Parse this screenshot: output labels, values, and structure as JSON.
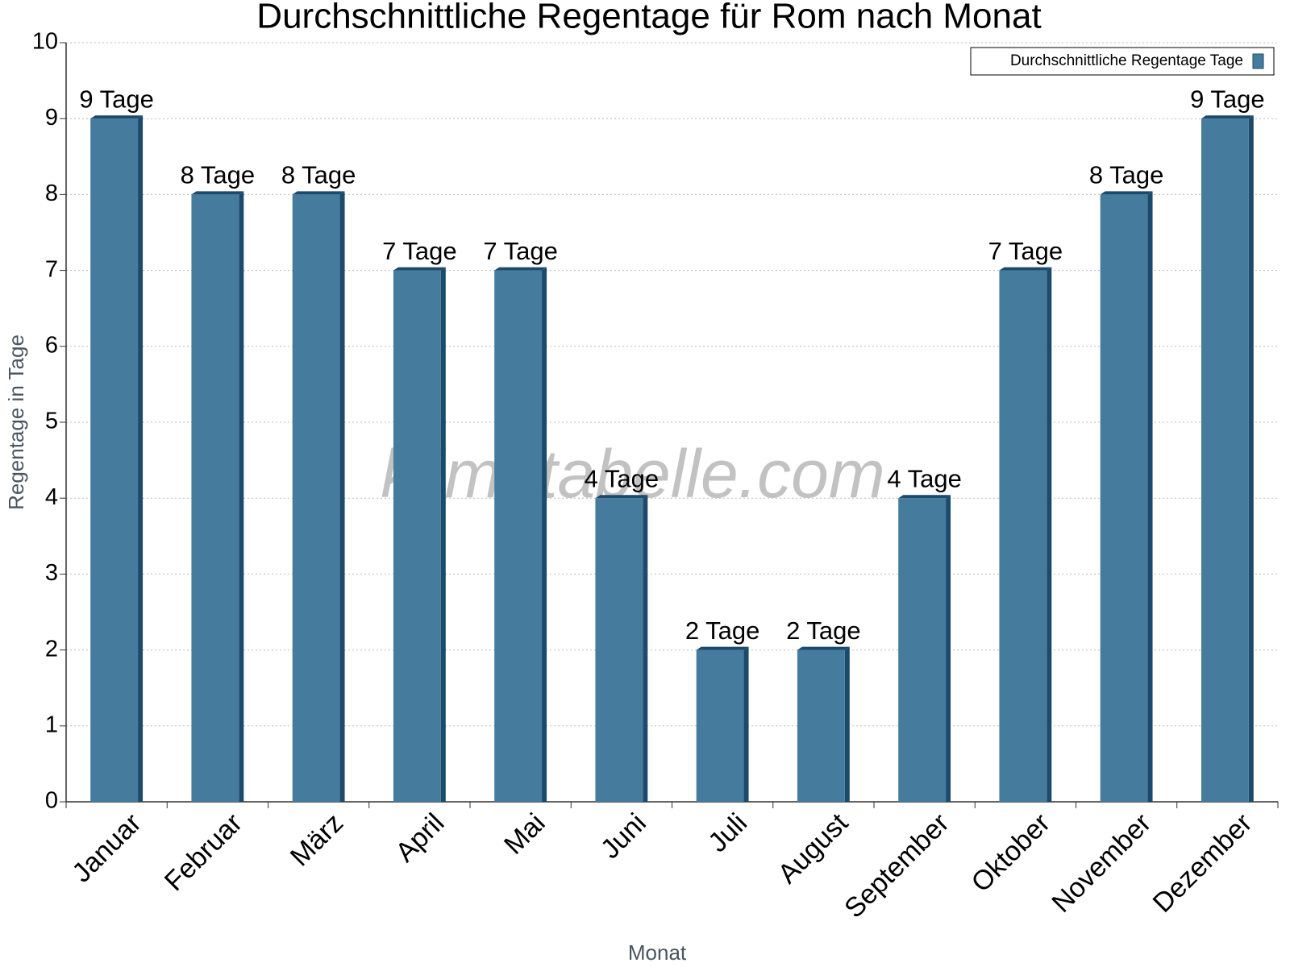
{
  "chart_data": {
    "type": "bar",
    "title": "Durchschnittliche Regentage für Rom nach Monat",
    "xlabel": "Monat",
    "ylabel": "Regentage in Tage",
    "watermark": "klimatabelle.com",
    "categories": [
      "Januar",
      "Februar",
      "März",
      "April",
      "Mai",
      "Juni",
      "Juli",
      "August",
      "September",
      "Oktober",
      "November",
      "Dezember"
    ],
    "series": [
      {
        "name": "Durchschnittliche Regentage Tage",
        "color": "#457b9d",
        "values": [
          9,
          8,
          8,
          7,
          7,
          4,
          2,
          2,
          4,
          7,
          8,
          9
        ],
        "value_labels": [
          "9 Tage",
          "8 Tage",
          "8 Tage",
          "7 Tage",
          "7 Tage",
          "4 Tage",
          "2 Tage",
          "2 Tage",
          "4 Tage",
          "7 Tage",
          "8 Tage",
          "9 Tage"
        ]
      }
    ],
    "ylim": [
      0,
      10
    ],
    "yticks": [
      0,
      1,
      2,
      3,
      4,
      5,
      6,
      7,
      8,
      9,
      10
    ],
    "grid": true,
    "legend": "top-right"
  }
}
